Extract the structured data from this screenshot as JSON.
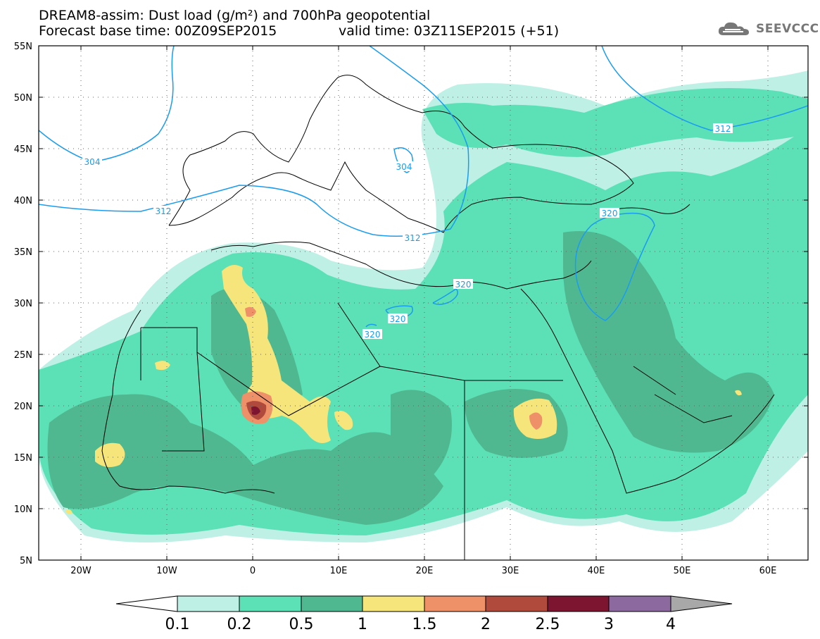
{
  "title": {
    "line1": "DREAM8-assim: Dust load (g/m²) and 700hPa geopotential",
    "base_time": "Forecast base time: 00Z09SEP2015",
    "valid_time": "valid time: 03Z11SEP2015 (+51)"
  },
  "logo": {
    "text": "SEEVCCC",
    "icon": "cloud-icon"
  },
  "map": {
    "lat_labels": [
      "55N",
      "50N",
      "45N",
      "40N",
      "35N",
      "30N",
      "25N",
      "20N",
      "15N",
      "10N",
      "5N"
    ],
    "lon_labels": [
      "20W",
      "10W",
      "0",
      "10E",
      "20E",
      "30E",
      "40E",
      "50E",
      "60E"
    ],
    "contour_labels": [
      "304",
      "304",
      "312",
      "312",
      "312",
      "320",
      "320",
      "320",
      "320"
    ]
  },
  "colorbar": {
    "labels": [
      "0.1",
      "0.2",
      "0.5",
      "1",
      "1.5",
      "2",
      "2.5",
      "3",
      "4"
    ],
    "colors": [
      "#ffffff",
      "#bff0e6",
      "#5ce0b6",
      "#50b890",
      "#f5e57a",
      "#ee9068",
      "#b04a3c",
      "#7e1530",
      "#8c6aa0",
      "#a8a8a8"
    ]
  }
}
